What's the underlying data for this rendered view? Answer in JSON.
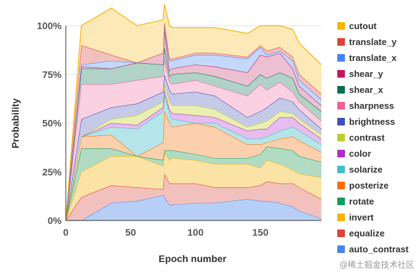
{
  "chart_data": {
    "type": "area",
    "stacked": true,
    "xlabel": "Epoch number",
    "ylabel": "Probability",
    "xlim": [
      0,
      197
    ],
    "ylim": [
      0,
      1
    ],
    "xticks": [
      "0",
      "50",
      "100",
      "150"
    ],
    "yticks": [
      "0%",
      "25%",
      "50%",
      "75%",
      "100%"
    ],
    "legend_position": "right",
    "x": [
      0,
      12,
      35,
      55,
      75,
      76,
      80,
      82,
      100,
      115,
      140,
      150,
      155,
      165,
      175,
      180,
      197
    ],
    "series": [
      {
        "name": "auto_contrast",
        "color": "#4a86e8",
        "fill": "#b7cff7",
        "values": [
          0,
          0.0,
          0.09,
          0.1,
          0.13,
          0.12,
          0.08,
          0.08,
          0.09,
          0.09,
          0.11,
          0.1,
          0.1,
          0.09,
          0.07,
          0.05,
          0.01
        ]
      },
      {
        "name": "equalize",
        "color": "#db4437",
        "fill": "#f3c1bd",
        "values": [
          0,
          0.12,
          0.09,
          0.07,
          0.03,
          0.12,
          0.11,
          0.11,
          0.1,
          0.08,
          0.06,
          0.08,
          0.1,
          0.1,
          0.12,
          0.12,
          0.1
        ]
      },
      {
        "name": "invert",
        "color": "#f4b400",
        "fill": "#fbe3a6",
        "values": [
          0,
          0.13,
          0.15,
          0.16,
          0.12,
          0.11,
          0.12,
          0.13,
          0.12,
          0.12,
          0.12,
          0.09,
          0.11,
          0.1,
          0.07,
          0.07,
          0.11
        ]
      },
      {
        "name": "rotate",
        "color": "#0f9d58",
        "fill": "#b2dbc4",
        "values": [
          0,
          0.12,
          0.04,
          0.0,
          0.03,
          0.01,
          0.05,
          0.04,
          0.03,
          0.03,
          0.03,
          0.07,
          0.07,
          0.08,
          0.1,
          0.09,
          0.08
        ]
      },
      {
        "name": "posterize",
        "color": "#ff6d00",
        "fill": "#fcd0ad",
        "values": [
          0,
          0.06,
          0.07,
          0.0,
          0.09,
          0.2,
          0.14,
          0.12,
          0.16,
          0.16,
          0.07,
          0.05,
          0.02,
          0.05,
          0.07,
          0.08,
          0.05
        ]
      },
      {
        "name": "solarize",
        "color": "#46bdc6",
        "fill": "#b5e5e8",
        "values": [
          0,
          0.0,
          0.04,
          0.14,
          0.16,
          0.09,
          0.05,
          0.04,
          0.0,
          0.02,
          0.03,
          0.03,
          0.03,
          0.04,
          0.05,
          0.05,
          0.04
        ]
      },
      {
        "name": "color",
        "color": "#ab30c4",
        "fill": "#e6bdee",
        "values": [
          0,
          0.0,
          0.02,
          0.02,
          0.02,
          0.02,
          0.02,
          0.03,
          0.04,
          0.03,
          0.04,
          0.05,
          0.04,
          0.07,
          0.05,
          0.04,
          0.03
        ]
      },
      {
        "name": "contrast",
        "color": "#c0ca33",
        "fill": "#eaefb1",
        "values": [
          0,
          0.0,
          0.02,
          0.05,
          0.03,
          0.03,
          0.04,
          0.04,
          0.05,
          0.04,
          0.02,
          0.03,
          0.04,
          0.03,
          0.02,
          0.02,
          0.02
        ]
      },
      {
        "name": "brightness",
        "color": "#3f51b5",
        "fill": "#c5cae9",
        "values": [
          0,
          0.09,
          0.06,
          0.06,
          0.05,
          0.05,
          0.06,
          0.06,
          0.07,
          0.07,
          0.05,
          0.06,
          0.07,
          0.07,
          0.06,
          0.05,
          0.03
        ]
      },
      {
        "name": "sharpness",
        "color": "#f06292",
        "fill": "#fbd0e0",
        "values": [
          0,
          0.18,
          0.12,
          0.12,
          0.08,
          0.08,
          0.04,
          0.05,
          0.06,
          0.05,
          0.11,
          0.14,
          0.09,
          0.08,
          0.05,
          0.04,
          0.04
        ]
      },
      {
        "name": "shear_x",
        "color": "#0b6e4f",
        "fill": "#b1d2c7",
        "values": [
          0,
          0.08,
          0.08,
          0.09,
          0.06,
          0.06,
          0.03,
          0.05,
          0.04,
          0.05,
          0.05,
          0.05,
          0.06,
          0.05,
          0.07,
          0.04,
          0.05
        ]
      },
      {
        "name": "shear_y",
        "color": "#c2185b",
        "fill": "#ecbfd1",
        "values": [
          0,
          0.01,
          0.0,
          0.0,
          0.06,
          0.09,
          0.03,
          0.03,
          0.04,
          0.05,
          0.07,
          0.1,
          0.11,
          0.1,
          0.05,
          0.04,
          0.03
        ]
      },
      {
        "name": "translate_x",
        "color": "#4285f4",
        "fill": "#c4d8fb",
        "values": [
          0,
          0.01,
          0.04,
          0.0,
          0.0,
          0.02,
          0.05,
          0.04,
          0.05,
          0.06,
          0.07,
          0.04,
          0.01,
          0.01,
          0.04,
          0.03,
          0.03
        ]
      },
      {
        "name": "translate_y",
        "color": "#db4437",
        "fill": "#f3c1bd",
        "values": [
          0,
          0.1,
          0.03,
          0.0,
          0.0,
          0.02,
          0.01,
          0.01,
          0.01,
          0.01,
          0.01,
          0.01,
          0.02,
          0.02,
          0.02,
          0.03,
          0.03
        ]
      },
      {
        "name": "cutout",
        "color": "#f4b400",
        "fill": "#fde9b8",
        "values": [
          0,
          0.1,
          0.24,
          0.19,
          0.17,
          0.09,
          0.17,
          0.16,
          0.13,
          0.13,
          0.12,
          0.1,
          0.13,
          0.11,
          0.14,
          0.16,
          0.15
        ]
      }
    ]
  },
  "watermark": "@稀土掘金技术社区"
}
